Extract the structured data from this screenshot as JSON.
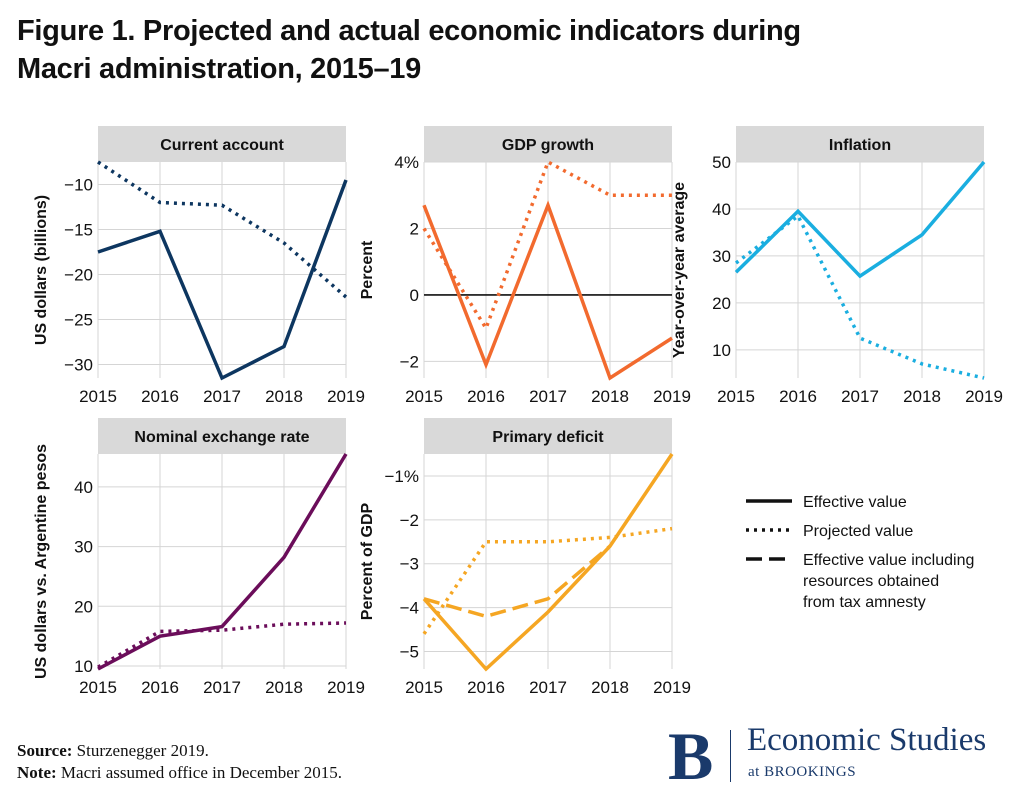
{
  "title_line1": "Figure 1. Projected and actual economic indicators during",
  "title_line2": "Macri administration, 2015–19",
  "colors": {
    "navy": "#0d3660",
    "orange": "#f26a2e",
    "blue": "#1aaee0",
    "purple": "#6b0d5a",
    "gold": "#f5a623",
    "panel_header": "#d9d9d9",
    "grid": "#d5d5d5",
    "brand": "#1a3a6b"
  },
  "legend": {
    "effective": "Effective value",
    "projected": "Projected value",
    "amnesty_line1": "Effective value including",
    "amnesty_line2": "resources obtained",
    "amnesty_line3": "from tax amnesty"
  },
  "chart_data": [
    {
      "type": "line",
      "title": "Current account",
      "ylabel": "US dollars (billions)",
      "x": [
        2015,
        2016,
        2017,
        2018,
        2019
      ],
      "ylim": [
        -31.5,
        -7.5
      ],
      "yticks": [
        -10,
        -15,
        -20,
        -25,
        -30
      ],
      "ytick_labels": [
        "−10",
        "−15",
        "−20",
        "−25",
        "−30"
      ],
      "color": "navy",
      "series": [
        {
          "name": "Effective value",
          "style": "solid",
          "values": [
            -17.5,
            -15.2,
            -31.5,
            -28,
            -9.5
          ]
        },
        {
          "name": "Projected value",
          "style": "dotted",
          "values": [
            -7.5,
            -12,
            -12.3,
            -16.5,
            -22.5
          ]
        }
      ]
    },
    {
      "type": "line",
      "title": "GDP growth",
      "ylabel": "Percent",
      "x": [
        2015,
        2016,
        2017,
        2018,
        2019
      ],
      "ylim": [
        -2.5,
        4
      ],
      "yticks": [
        4,
        2,
        0,
        -2
      ],
      "ytick_labels": [
        "4%",
        "2",
        "0",
        "−2"
      ],
      "zero_line": true,
      "color": "orange",
      "series": [
        {
          "name": "Effective value",
          "style": "solid",
          "values": [
            2.7,
            -2.1,
            2.7,
            -2.5,
            -1.3
          ]
        },
        {
          "name": "Projected value",
          "style": "dotted",
          "values": [
            2,
            -1,
            4,
            3,
            3
          ]
        }
      ]
    },
    {
      "type": "line",
      "title": "Inflation",
      "ylabel": "Year-over-year average",
      "x": [
        2015,
        2016,
        2017,
        2018,
        2019
      ],
      "ylim": [
        4,
        50
      ],
      "yticks": [
        50,
        40,
        30,
        20,
        10
      ],
      "ytick_labels": [
        "50",
        "40",
        "30",
        "20",
        "10"
      ],
      "color": "blue",
      "series": [
        {
          "name": "Effective value",
          "style": "solid",
          "values": [
            26.5,
            39.5,
            25.7,
            34.5,
            50
          ]
        },
        {
          "name": "Projected value",
          "style": "dotted",
          "values": [
            28.5,
            38.5,
            12.5,
            7,
            4
          ]
        }
      ]
    },
    {
      "type": "line",
      "title": "Nominal exchange rate",
      "ylabel": "US dollars vs. Argentine pesos",
      "x": [
        2015,
        2016,
        2017,
        2018,
        2019
      ],
      "ylim": [
        9.5,
        45.5
      ],
      "yticks": [
        40,
        30,
        20,
        10
      ],
      "ytick_labels": [
        "40",
        "30",
        "20",
        "10"
      ],
      "color": "purple",
      "series": [
        {
          "name": "Effective value",
          "style": "solid",
          "values": [
            9.5,
            15,
            16.6,
            28.2,
            45.5
          ]
        },
        {
          "name": "Projected value",
          "style": "dotted",
          "values": [
            9.8,
            15.8,
            16,
            17,
            17.2
          ]
        }
      ]
    },
    {
      "type": "line",
      "title": "Primary deficit",
      "ylabel": "Percent of GDP",
      "x": [
        2015,
        2016,
        2017,
        2018,
        2019
      ],
      "ylim": [
        -5.4,
        -0.5
      ],
      "yticks": [
        -1,
        -2,
        -3,
        -4,
        -5
      ],
      "ytick_labels": [
        "−1%",
        "−2",
        "−3",
        "−4",
        "−5"
      ],
      "color": "gold",
      "series": [
        {
          "name": "Effective value",
          "style": "solid",
          "values": [
            -3.8,
            -5.4,
            -4.1,
            -2.6,
            -0.5
          ]
        },
        {
          "name": "Projected value",
          "style": "dotted",
          "values": [
            -4.6,
            -2.5,
            -2.5,
            -2.4,
            -2.2
          ]
        },
        {
          "name": "Effective value including resources obtained from tax amnesty",
          "style": "dashed",
          "values": [
            -3.8,
            -4.2,
            -3.8,
            -2.6,
            null
          ]
        }
      ]
    }
  ],
  "source_label": "Source:",
  "source_text": " Sturzenegger 2019.",
  "note_label": "Note:",
  "note_text": " Macri assumed office in December 2015.",
  "brand_letter": "B",
  "brand_main": "Economic Studies",
  "brand_sub": "at BROOKINGS"
}
